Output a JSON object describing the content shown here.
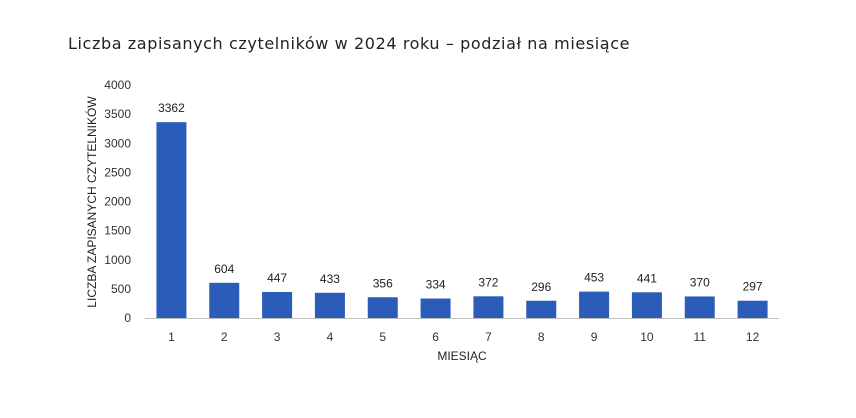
{
  "chart_data": {
    "type": "bar",
    "title": "Liczba zapisanych czytelników w 2024 roku – podział na miesiące",
    "xlabel": "MIESIĄC",
    "ylabel": "LICZBA ZAPISANYCH CZYTELNIKÓW",
    "categories": [
      "1",
      "2",
      "3",
      "4",
      "5",
      "6",
      "7",
      "8",
      "9",
      "10",
      "11",
      "12"
    ],
    "values": [
      3362,
      604,
      447,
      433,
      356,
      334,
      372,
      296,
      453,
      441,
      370,
      297
    ],
    "ylim": [
      0,
      4000
    ],
    "yticks": [
      0,
      500,
      1000,
      1500,
      2000,
      2500,
      3000,
      3500,
      4000
    ],
    "grid": false,
    "legend": "none",
    "bar_color": "#2b5cb8",
    "axis_color": "#bfbfbf"
  }
}
